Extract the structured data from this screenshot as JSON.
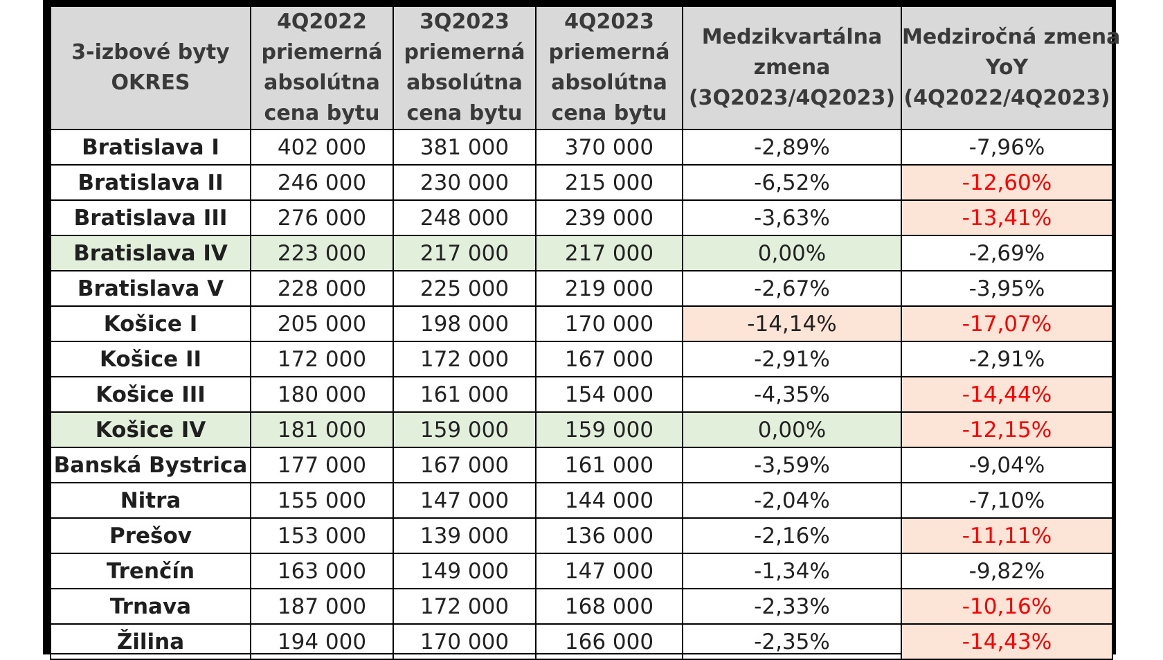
{
  "colors": {
    "header_bg": "#d9d9d9",
    "highlight_green": "#e2efda",
    "highlight_red": "#fce4d6",
    "negative_text_red": "#ff0000",
    "border": "#000000"
  },
  "headers": [
    [
      "3-izbové byty",
      "OKRES"
    ],
    [
      "4Q2022",
      "priemerná",
      "absolútna",
      "cena bytu"
    ],
    [
      "3Q2023",
      "priemerná",
      "absolútna",
      "cena bytu"
    ],
    [
      "4Q2023",
      "priemerná",
      "absolútna",
      "cena bytu"
    ],
    [
      "Medzikvartálna",
      "zmena",
      "(3Q2023/4Q2023)"
    ],
    [
      "Medziročná zmena",
      "YoY",
      "(4Q2022/4Q2023)"
    ]
  ],
  "rows": [
    {
      "okres": "Bratislava I",
      "q4_2022": "402 000",
      "q3_2023": "381 000",
      "q4_2023": "370 000",
      "qoq": "-2,89%",
      "yoy": "-7,96%",
      "qoq_style": "",
      "yoy_style": ""
    },
    {
      "okres": "Bratislava II",
      "q4_2022": "246 000",
      "q3_2023": "230 000",
      "q4_2023": "215 000",
      "qoq": "-6,52%",
      "yoy": "-12,60%",
      "qoq_style": "",
      "yoy_style": "red redtext"
    },
    {
      "okres": "Bratislava III",
      "q4_2022": "276 000",
      "q3_2023": "248 000",
      "q4_2023": "239 000",
      "qoq": "-3,63%",
      "yoy": "-13,41%",
      "qoq_style": "",
      "yoy_style": "red redtext"
    },
    {
      "okres": "Bratislava IV",
      "q4_2022": "223 000",
      "q3_2023": "217 000",
      "q4_2023": "217 000",
      "qoq": "0,00%",
      "yoy": "-2,69%",
      "row_style": "green",
      "qoq_style": "green",
      "yoy_style": ""
    },
    {
      "okres": "Bratislava V",
      "q4_2022": "228 000",
      "q3_2023": "225 000",
      "q4_2023": "219 000",
      "qoq": "-2,67%",
      "yoy": "-3,95%",
      "qoq_style": "",
      "yoy_style": ""
    },
    {
      "okres": "Košice I",
      "q4_2022": "205 000",
      "q3_2023": "198 000",
      "q4_2023": "170 000",
      "qoq": "-14,14%",
      "yoy": "-17,07%",
      "qoq_style": "red",
      "yoy_style": "red redtext"
    },
    {
      "okres": "Košice II",
      "q4_2022": "172 000",
      "q3_2023": "172 000",
      "q4_2023": "167 000",
      "qoq": "-2,91%",
      "yoy": "-2,91%",
      "qoq_style": "",
      "yoy_style": ""
    },
    {
      "okres": "Košice III",
      "q4_2022": "180 000",
      "q3_2023": "161 000",
      "q4_2023": "154 000",
      "qoq": "-4,35%",
      "yoy": "-14,44%",
      "qoq_style": "",
      "yoy_style": "red redtext"
    },
    {
      "okres": "Košice IV",
      "q4_2022": "181 000",
      "q3_2023": "159 000",
      "q4_2023": "159 000",
      "qoq": "0,00%",
      "yoy": "-12,15%",
      "row_style": "green",
      "qoq_style": "green",
      "yoy_style": "red redtext"
    },
    {
      "okres": "Banská Bystrica",
      "q4_2022": "177 000",
      "q3_2023": "167 000",
      "q4_2023": "161 000",
      "qoq": "-3,59%",
      "yoy": "-9,04%",
      "qoq_style": "",
      "yoy_style": ""
    },
    {
      "okres": "Nitra",
      "q4_2022": "155 000",
      "q3_2023": "147 000",
      "q4_2023": "144 000",
      "qoq": "-2,04%",
      "yoy": "-7,10%",
      "qoq_style": "",
      "yoy_style": ""
    },
    {
      "okres": "Prešov",
      "q4_2022": "153 000",
      "q3_2023": "139 000",
      "q4_2023": "136 000",
      "qoq": "-2,16%",
      "yoy": "-11,11%",
      "qoq_style": "",
      "yoy_style": "red redtext"
    },
    {
      "okres": "Trenčín",
      "q4_2022": "163 000",
      "q3_2023": "149 000",
      "q4_2023": "147 000",
      "qoq": "-1,34%",
      "yoy": "-9,82%",
      "qoq_style": "",
      "yoy_style": ""
    },
    {
      "okres": "Trnava",
      "q4_2022": "187 000",
      "q3_2023": "172 000",
      "q4_2023": "168 000",
      "qoq": "-2,33%",
      "yoy": "-10,16%",
      "qoq_style": "",
      "yoy_style": "red redtext"
    },
    {
      "okres": "Žilina",
      "q4_2022": "194 000",
      "q3_2023": "170 000",
      "q4_2023": "166 000",
      "qoq": "-2,35%",
      "yoy": "-14,43%",
      "qoq_style": "",
      "yoy_style": "red redtext"
    }
  ]
}
